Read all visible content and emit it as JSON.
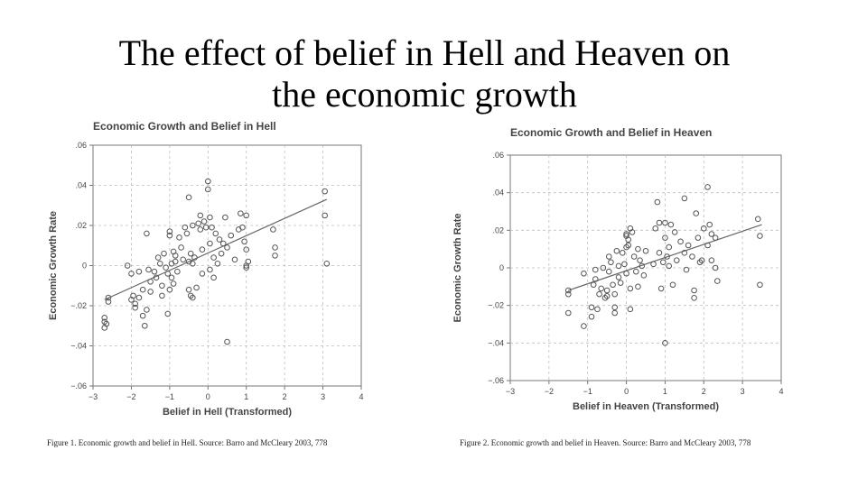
{
  "slide": {
    "title_line1": "The effect of belief in Hell and Heaven on",
    "title_line2": "the economic growth"
  },
  "colors": {
    "grid": "#bdbdbd",
    "marker": "#555555",
    "text": "#444444",
    "frame": "#777777"
  },
  "chart_data": [
    {
      "type": "scatter",
      "title": "Economic Growth and Belief in Hell",
      "xlabel": "Belief in Hell (Transformed)",
      "ylabel": "Economic Growth Rate",
      "xlim": [
        -3,
        4
      ],
      "ylim": [
        -0.06,
        0.06
      ],
      "xticks": [
        -3,
        -2,
        -1,
        0,
        1,
        2,
        3,
        4
      ],
      "xtick_labels": [
        "−3",
        "−2",
        "−1",
        "0",
        "1",
        "2",
        "3",
        "4"
      ],
      "yticks": [
        -0.06,
        -0.04,
        -0.02,
        0,
        0.02,
        0.04,
        0.06
      ],
      "ytick_labels": [
        "−.06",
        "−.04",
        "−.02",
        "0",
        ".02",
        ".04",
        ".06"
      ],
      "grid": true,
      "marker": "open-circle",
      "trendline": {
        "x": [
          -2.7,
          3.1
        ],
        "y": [
          -0.017,
          0.033
        ]
      },
      "points": [
        [
          -2.7,
          -0.026
        ],
        [
          -2.7,
          -0.028
        ],
        [
          -2.7,
          -0.031
        ],
        [
          -2.65,
          -0.029
        ],
        [
          -2.6,
          -0.016
        ],
        [
          -2.6,
          -0.018
        ],
        [
          -2.1,
          0.0
        ],
        [
          -2.0,
          -0.004
        ],
        [
          -2.0,
          -0.017
        ],
        [
          -1.95,
          -0.015
        ],
        [
          -1.9,
          -0.019
        ],
        [
          -1.9,
          -0.021
        ],
        [
          -1.8,
          -0.016
        ],
        [
          -1.8,
          -0.003
        ],
        [
          -1.7,
          -0.012
        ],
        [
          -1.7,
          -0.025
        ],
        [
          -1.65,
          -0.03
        ],
        [
          -1.6,
          0.016
        ],
        [
          -1.6,
          -0.022
        ],
        [
          -1.55,
          -0.002
        ],
        [
          -1.5,
          -0.008
        ],
        [
          -1.5,
          -0.013
        ],
        [
          -1.4,
          -0.003
        ],
        [
          -1.35,
          -0.006
        ],
        [
          -1.3,
          0.004
        ],
        [
          -1.25,
          0.001
        ],
        [
          -1.2,
          -0.01
        ],
        [
          -1.2,
          -0.015
        ],
        [
          -1.15,
          0.006
        ],
        [
          -1.1,
          -0.001
        ],
        [
          -1.05,
          -0.004
        ],
        [
          -1.05,
          -0.024
        ],
        [
          -1.0,
          0.015
        ],
        [
          -1.0,
          0.017
        ],
        [
          -1.0,
          -0.012
        ],
        [
          -0.95,
          0.001
        ],
        [
          -0.95,
          -0.006
        ],
        [
          -0.9,
          0.007
        ],
        [
          -0.9,
          -0.009
        ],
        [
          -0.85,
          0.005
        ],
        [
          -0.85,
          0.002
        ],
        [
          -0.8,
          -0.003
        ],
        [
          -0.75,
          0.014
        ],
        [
          -0.7,
          0.009
        ],
        [
          -0.65,
          0.003
        ],
        [
          -0.6,
          0.019
        ],
        [
          -0.55,
          0.016
        ],
        [
          -0.5,
          0.034
        ],
        [
          -0.5,
          0.002
        ],
        [
          -0.5,
          -0.012
        ],
        [
          -0.45,
          0.006
        ],
        [
          -0.45,
          -0.015
        ],
        [
          -0.4,
          0.02
        ],
        [
          -0.4,
          0.001
        ],
        [
          -0.4,
          -0.016
        ],
        [
          -0.35,
          0.004
        ],
        [
          -0.3,
          -0.011
        ],
        [
          -0.25,
          0.021
        ],
        [
          -0.2,
          0.025
        ],
        [
          -0.2,
          0.018
        ],
        [
          -0.15,
          0.008
        ],
        [
          -0.15,
          -0.004
        ],
        [
          -0.1,
          0.022
        ],
        [
          -0.05,
          0.019
        ],
        [
          0.0,
          0.042
        ],
        [
          0.0,
          0.038
        ],
        [
          0.05,
          0.024
        ],
        [
          0.05,
          0.011
        ],
        [
          0.05,
          -0.002
        ],
        [
          0.1,
          0.019
        ],
        [
          0.15,
          0.004
        ],
        [
          0.15,
          -0.006
        ],
        [
          0.2,
          0.016
        ],
        [
          0.25,
          0.001
        ],
        [
          0.3,
          0.013
        ],
        [
          0.35,
          0.006
        ],
        [
          0.4,
          0.011
        ],
        [
          0.45,
          0.024
        ],
        [
          0.5,
          0.009
        ],
        [
          0.5,
          -0.038
        ],
        [
          0.6,
          0.015
        ],
        [
          0.7,
          0.003
        ],
        [
          0.8,
          0.018
        ],
        [
          0.85,
          0.026
        ],
        [
          0.9,
          0.019
        ],
        [
          0.95,
          0.012
        ],
        [
          1.0,
          0.025
        ],
        [
          1.0,
          0.008
        ],
        [
          1.0,
          0.0
        ],
        [
          1.0,
          -0.001
        ],
        [
          1.05,
          0.002
        ],
        [
          1.7,
          0.018
        ],
        [
          1.75,
          0.009
        ],
        [
          1.75,
          0.005
        ],
        [
          3.05,
          0.037
        ],
        [
          3.05,
          0.025
        ],
        [
          3.1,
          0.001
        ]
      ]
    },
    {
      "type": "scatter",
      "title": "Economic Growth and Belief in Heaven",
      "xlabel": "Belief in Heaven (Transformed)",
      "ylabel": "Economic Growth Rate",
      "xlim": [
        -3,
        4
      ],
      "ylim": [
        -0.06,
        0.06
      ],
      "xticks": [
        -3,
        -2,
        -1,
        0,
        1,
        2,
        3,
        4
      ],
      "xtick_labels": [
        "−3",
        "−2",
        "−1",
        "0",
        "1",
        "2",
        "3",
        "4"
      ],
      "yticks": [
        -0.06,
        -0.04,
        -0.02,
        0,
        0.02,
        0.04,
        0.06
      ],
      "ytick_labels": [
        "−.06",
        "−.04",
        "−.02",
        "0",
        ".02",
        ".04",
        ".06"
      ],
      "grid": true,
      "marker": "open-circle",
      "trendline": {
        "x": [
          -1.5,
          3.5
        ],
        "y": [
          -0.012,
          0.023
        ]
      },
      "points": [
        [
          -1.5,
          -0.012
        ],
        [
          -1.5,
          -0.014
        ],
        [
          -1.5,
          -0.024
        ],
        [
          -1.1,
          -0.031
        ],
        [
          -1.1,
          -0.003
        ],
        [
          -0.9,
          -0.026
        ],
        [
          -0.9,
          -0.021
        ],
        [
          -0.85,
          -0.009
        ],
        [
          -0.8,
          -0.006
        ],
        [
          -0.8,
          -0.001
        ],
        [
          -0.75,
          -0.022
        ],
        [
          -0.7,
          -0.014
        ],
        [
          -0.65,
          -0.011
        ],
        [
          -0.6,
          0.0
        ],
        [
          -0.55,
          -0.016
        ],
        [
          -0.5,
          -0.012
        ],
        [
          -0.5,
          -0.015
        ],
        [
          -0.45,
          0.006
        ],
        [
          -0.45,
          -0.002
        ],
        [
          -0.4,
          0.003
        ],
        [
          -0.35,
          -0.009
        ],
        [
          -0.3,
          -0.024
        ],
        [
          -0.3,
          -0.021
        ],
        [
          -0.3,
          -0.014
        ],
        [
          -0.25,
          0.009
        ],
        [
          -0.2,
          0.001
        ],
        [
          -0.2,
          -0.005
        ],
        [
          -0.15,
          -0.008
        ],
        [
          -0.1,
          0.008
        ],
        [
          -0.05,
          0.002
        ],
        [
          0.0,
          0.018
        ],
        [
          0.0,
          0.017
        ],
        [
          0.0,
          0.011
        ],
        [
          0.0,
          -0.003
        ],
        [
          0.05,
          0.015
        ],
        [
          0.05,
          0.012
        ],
        [
          0.1,
          0.021
        ],
        [
          0.1,
          -0.011
        ],
        [
          0.1,
          -0.022
        ],
        [
          0.15,
          0.019
        ],
        [
          0.2,
          0.006
        ],
        [
          0.25,
          -0.002
        ],
        [
          0.3,
          0.01
        ],
        [
          0.3,
          -0.01
        ],
        [
          0.35,
          0.004
        ],
        [
          0.4,
          0.001
        ],
        [
          0.45,
          -0.004
        ],
        [
          0.5,
          0.009
        ],
        [
          0.7,
          0.002
        ],
        [
          0.75,
          0.021
        ],
        [
          0.8,
          0.035
        ],
        [
          0.85,
          0.024
        ],
        [
          0.85,
          0.008
        ],
        [
          0.9,
          -0.011
        ],
        [
          0.95,
          0.003
        ],
        [
          1.0,
          0.024
        ],
        [
          1.0,
          0.016
        ],
        [
          1.0,
          -0.04
        ],
        [
          1.05,
          0.006
        ],
        [
          1.1,
          0.011
        ],
        [
          1.1,
          0.001
        ],
        [
          1.15,
          0.023
        ],
        [
          1.2,
          -0.009
        ],
        [
          1.25,
          0.019
        ],
        [
          1.3,
          0.004
        ],
        [
          1.4,
          0.014
        ],
        [
          1.5,
          0.037
        ],
        [
          1.5,
          0.008
        ],
        [
          1.55,
          -0.001
        ],
        [
          1.6,
          0.012
        ],
        [
          1.7,
          0.006
        ],
        [
          1.75,
          -0.012
        ],
        [
          1.75,
          -0.016
        ],
        [
          1.8,
          0.029
        ],
        [
          1.85,
          0.016
        ],
        [
          1.9,
          0.003
        ],
        [
          1.95,
          0.004
        ],
        [
          2.0,
          0.021
        ],
        [
          2.1,
          0.043
        ],
        [
          2.1,
          0.012
        ],
        [
          2.15,
          0.023
        ],
        [
          2.2,
          0.018
        ],
        [
          2.2,
          0.004
        ],
        [
          2.3,
          0.016
        ],
        [
          2.3,
          0.0
        ],
        [
          2.35,
          -0.007
        ],
        [
          3.4,
          0.026
        ],
        [
          3.45,
          0.017
        ],
        [
          3.45,
          -0.009
        ]
      ]
    }
  ],
  "captions": {
    "fig1": "Figure 1. Economic growth and belief in Hell. Source: Barro and McCleary 2003, 778",
    "fig2": "Figure 2. Economic growth and belief in Heaven. Source: Barro and McCleary 2003, 778"
  }
}
